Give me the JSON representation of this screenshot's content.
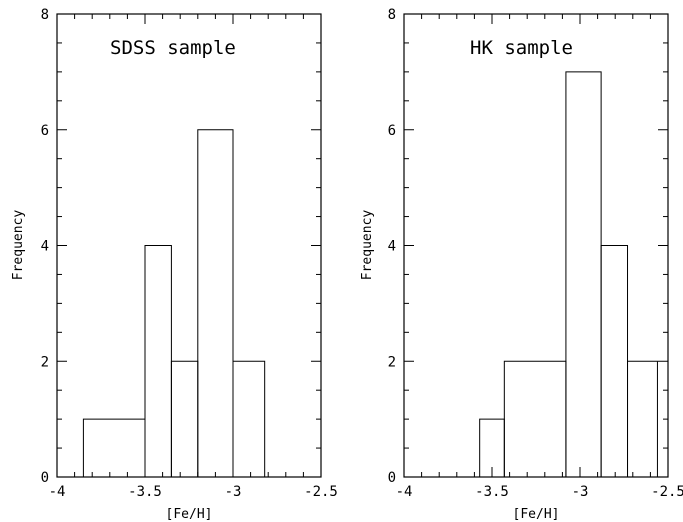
{
  "chart_data": [
    {
      "type": "bar",
      "subtype": "histogram",
      "annotation": "SDSS sample",
      "xlabel": "[Fe/H]",
      "ylabel": "Frequency",
      "xlim": [
        -4,
        -2.5
      ],
      "ylim": [
        0,
        8
      ],
      "xticks": [
        "-4",
        "-3.5",
        "-3",
        "-2.5"
      ],
      "yticks": [
        "0",
        "2",
        "4",
        "6",
        "8"
      ],
      "bins": [
        {
          "x0": -3.85,
          "x1": -3.5,
          "count": 1
        },
        {
          "x0": -3.5,
          "x1": -3.35,
          "count": 4
        },
        {
          "x0": -3.35,
          "x1": -3.2,
          "count": 2
        },
        {
          "x0": -3.2,
          "x1": -3.0,
          "count": 6
        },
        {
          "x0": -3.0,
          "x1": -2.82,
          "count": 2
        }
      ],
      "grid": false,
      "legend": "none"
    },
    {
      "type": "bar",
      "subtype": "histogram",
      "annotation": "HK sample",
      "xlabel": "[Fe/H]",
      "ylabel": "Frequency",
      "xlim": [
        -4,
        -2.5
      ],
      "ylim": [
        0,
        8
      ],
      "xticks": [
        "-4",
        "-3.5",
        "-3",
        "-2.5"
      ],
      "yticks": [
        "0",
        "2",
        "4",
        "6",
        "8"
      ],
      "bins": [
        {
          "x0": -3.57,
          "x1": -3.43,
          "count": 1
        },
        {
          "x0": -3.43,
          "x1": -3.08,
          "count": 2
        },
        {
          "x0": -3.08,
          "x1": -2.88,
          "count": 7
        },
        {
          "x0": -2.88,
          "x1": -2.73,
          "count": 4
        },
        {
          "x0": -2.73,
          "x1": -2.56,
          "count": 2
        }
      ],
      "grid": false,
      "legend": "none"
    }
  ]
}
